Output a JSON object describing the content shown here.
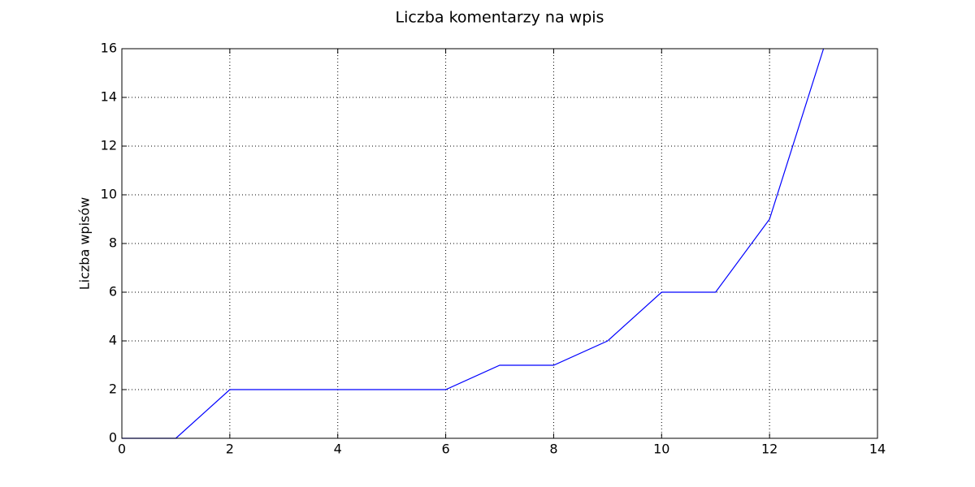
{
  "chart_data": {
    "type": "line",
    "title": "Liczba komentarzy na wpis",
    "ylabel": "Liczba wpisów",
    "x": [
      0,
      1,
      2,
      3,
      4,
      5,
      6,
      7,
      8,
      9,
      10,
      11,
      12,
      13
    ],
    "values": [
      0,
      0,
      2,
      2,
      2,
      2,
      2,
      3,
      3,
      4,
      6,
      6,
      9,
      16
    ],
    "color": "#0000ff",
    "xlim": [
      0,
      14
    ],
    "xticks": [
      0,
      2,
      4,
      6,
      8,
      10,
      12,
      14
    ],
    "ylim": [
      0,
      16
    ],
    "yticks": [
      0,
      2,
      4,
      6,
      8,
      10,
      12,
      14,
      16
    ],
    "grid": true
  }
}
